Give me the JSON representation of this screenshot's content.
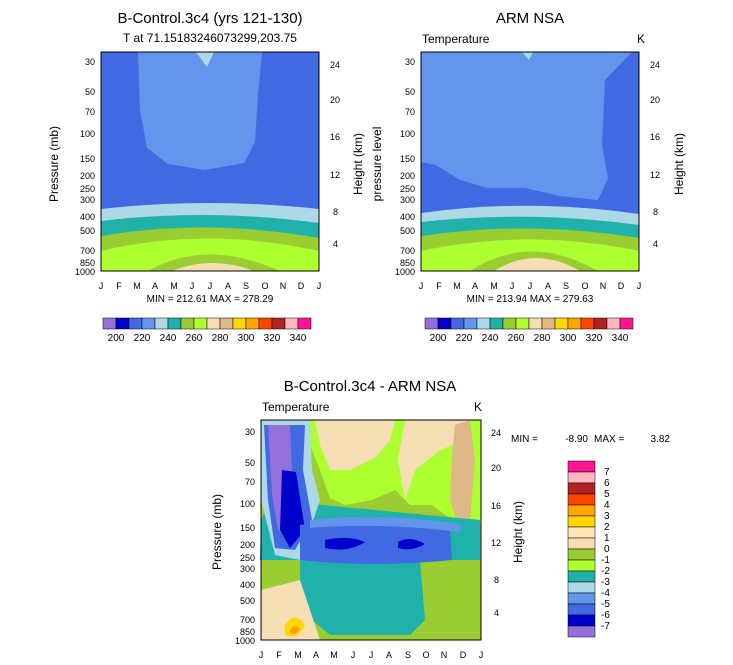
{
  "palette": {
    "abs": [
      "#9370DB",
      "#0000CD",
      "#4169E1",
      "#6495ED",
      "#ADD8E6",
      "#20B2AA",
      "#9ACD32",
      "#ADFF2F",
      "#F5DEB3",
      "#DEB887",
      "#FFD700",
      "#FFA500",
      "#FF4500",
      "#B22222",
      "#FFB6C1",
      "#FF1493"
    ],
    "diff": [
      "#9370DB",
      "#0000CD",
      "#4169E1",
      "#6495ED",
      "#ADD8E6",
      "#20B2AA",
      "#ADFF2F",
      "#9ACD32",
      "#F5DEB3",
      "#FFE4B5",
      "#FFD700",
      "#FFA500",
      "#FF4500",
      "#B22222",
      "#FFB6C1",
      "#FF1493"
    ]
  },
  "chart_data": [
    {
      "id": "model",
      "type": "contour",
      "title": "B-Control.3c4 (yrs 121-130)",
      "subtitle": "T at 71.15183246073299,203.75",
      "left_label": "",
      "right_label": "",
      "ylabel": "Pressure (mb)",
      "y2label": "Height (km)",
      "x_ticks": [
        "J",
        "F",
        "M",
        "A",
        "M",
        "J",
        "J",
        "A",
        "S",
        "O",
        "N",
        "D",
        "J"
      ],
      "p_ticks": [
        30,
        50,
        70,
        100,
        150,
        200,
        250,
        300,
        400,
        500,
        700,
        850,
        1000
      ],
      "h_ticks": [
        4,
        8,
        12,
        16,
        20,
        24
      ],
      "stats": "MIN = 212.61  MAX = 278.29",
      "min": 212.61,
      "max": 278.29,
      "colorbar_labels": [
        "200",
        "220",
        "240",
        "260",
        "280",
        "300",
        "320",
        "340"
      ]
    },
    {
      "id": "obs",
      "type": "contour",
      "title": "ARM NSA",
      "subtitle": "",
      "left_label": "Temperature",
      "right_label": "K",
      "ylabel": "pressure level",
      "y2label": "Height (km)",
      "x_ticks": [
        "J",
        "F",
        "M",
        "A",
        "M",
        "J",
        "J",
        "A",
        "S",
        "O",
        "N",
        "D",
        "J"
      ],
      "p_ticks": [
        30,
        50,
        70,
        100,
        150,
        200,
        250,
        300,
        400,
        500,
        700,
        850,
        1000
      ],
      "h_ticks": [
        4,
        8,
        12,
        16,
        20,
        24
      ],
      "stats": "MIN = 213.94  MAX = 279.63",
      "min": 213.94,
      "max": 279.63,
      "colorbar_labels": [
        "200",
        "220",
        "240",
        "260",
        "280",
        "300",
        "320",
        "340"
      ]
    },
    {
      "id": "diff",
      "type": "contour",
      "title": "B-Control.3c4 - ARM NSA",
      "subtitle": "",
      "left_label": "Temperature",
      "right_label": "K",
      "ylabel": "Pressure (mb)",
      "y2label": "Height (km)",
      "x_ticks": [
        "J",
        "F",
        "M",
        "A",
        "M",
        "J",
        "J",
        "A",
        "S",
        "O",
        "N",
        "D",
        "J"
      ],
      "p_ticks": [
        30,
        50,
        70,
        100,
        150,
        200,
        250,
        300,
        400,
        500,
        700,
        850,
        1000
      ],
      "h_ticks": [
        4,
        8,
        12,
        16,
        20,
        24
      ],
      "stats_min_label": "MIN =",
      "stats_min": "-8.90",
      "stats_max_label": "MAX =",
      "stats_max": "3.82",
      "min": -8.9,
      "max": 3.82,
      "colorbar_labels": [
        "7",
        "6",
        "5",
        "4",
        "3",
        "2",
        "1",
        "0",
        "-1",
        "-2",
        "-3",
        "-4",
        "-5",
        "-6",
        "-7"
      ]
    }
  ]
}
